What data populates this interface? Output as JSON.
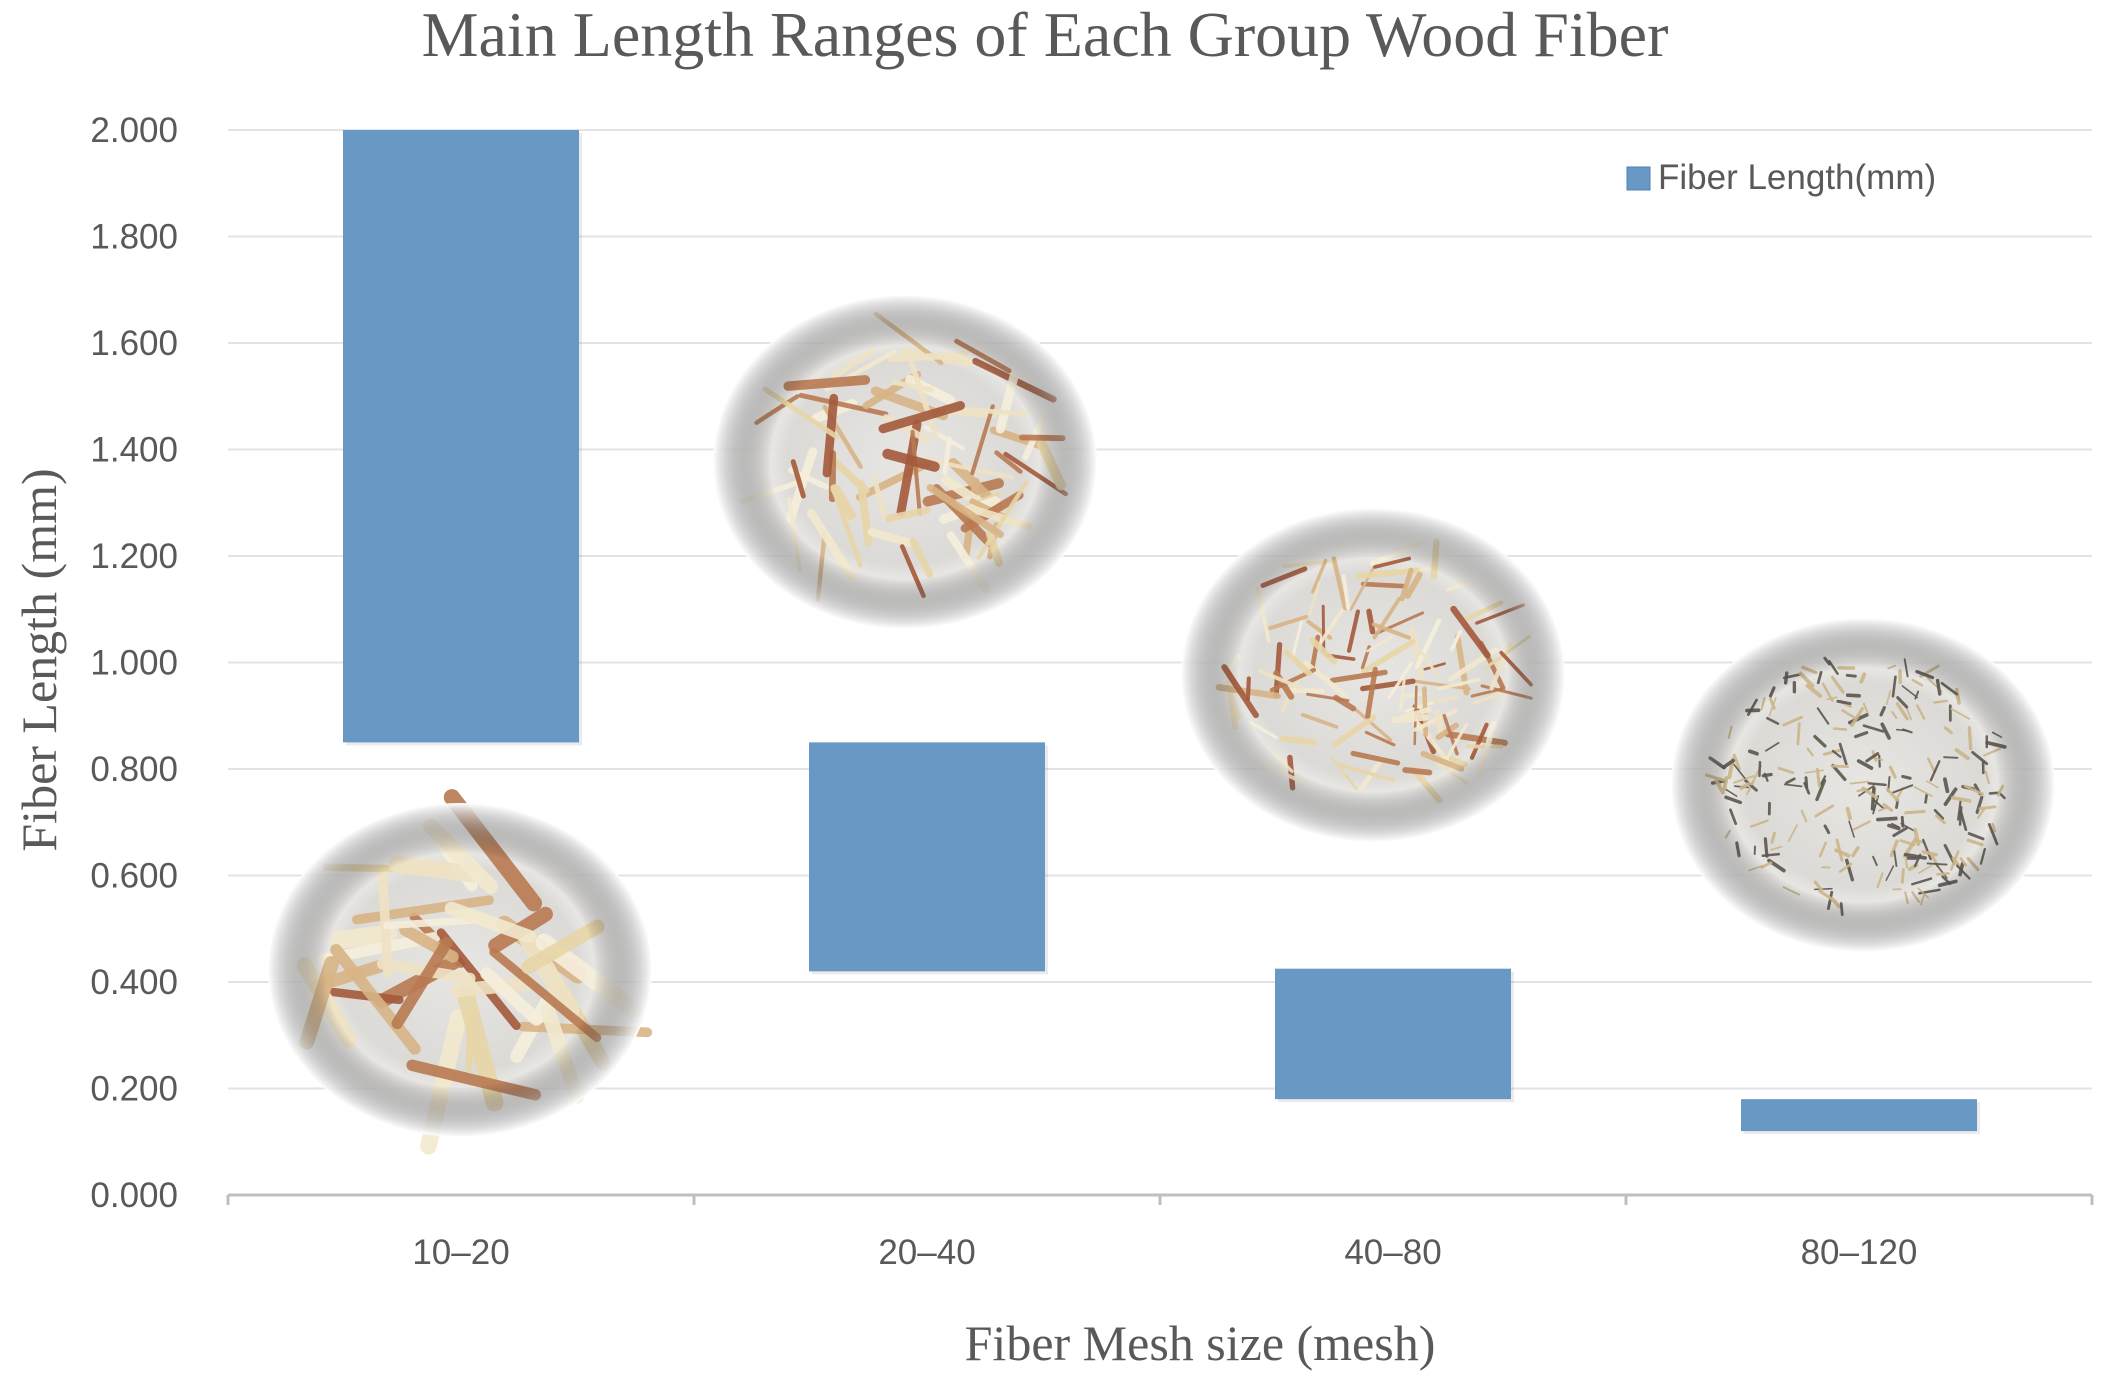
{
  "chart_data": {
    "type": "bar",
    "subtype": "floating-range",
    "title": "Main Length Ranges of Each Group Wood Fiber",
    "xlabel": "Fiber Mesh size (mesh)",
    "ylabel": "Fiber Length (mm)",
    "categories": [
      "10–20",
      "20–40",
      "40–80",
      "80–120"
    ],
    "series": [
      {
        "name": "Fiber Length(mm)",
        "color": "#6899c5",
        "ranges": [
          [
            0.85,
            2.0
          ],
          [
            0.42,
            0.85
          ],
          [
            0.18,
            0.425
          ],
          [
            0.12,
            0.18
          ]
        ]
      }
    ],
    "ylim": [
      0,
      2
    ],
    "yticks": [
      "0.000",
      "0.200",
      "0.400",
      "0.600",
      "0.800",
      "1.000",
      "1.200",
      "1.400",
      "1.600",
      "1.800",
      "2.000"
    ],
    "grid": true,
    "legend_position": "top-right",
    "annotations": [
      {
        "type": "image",
        "icon": "fiber-micrograph-icon",
        "category": "10–20",
        "fiber_scale": "coarse"
      },
      {
        "type": "image",
        "icon": "fiber-micrograph-icon",
        "category": "20–40",
        "fiber_scale": "medium"
      },
      {
        "type": "image",
        "icon": "fiber-micrograph-icon",
        "category": "40–80",
        "fiber_scale": "fine"
      },
      {
        "type": "image",
        "icon": "fiber-micrograph-icon",
        "category": "80–120",
        "fiber_scale": "dust"
      }
    ]
  }
}
